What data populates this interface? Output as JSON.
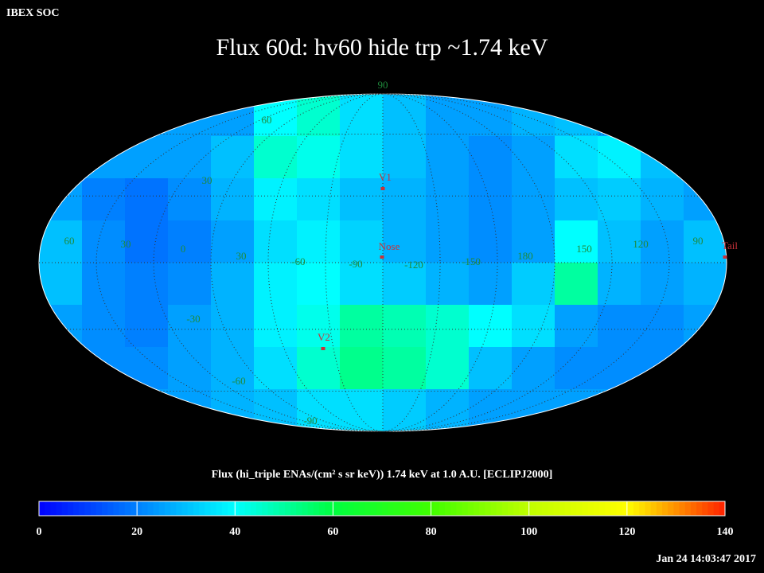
{
  "header": {
    "source": "IBEX SOC",
    "title": "Flux   60d: hv60 hide trp ~1.74 keV"
  },
  "map": {
    "latitude_labels": [
      "90",
      "60",
      "30",
      "-30",
      "-60",
      "-90"
    ],
    "longitude_labels": [
      "60",
      "30",
      "0",
      "30",
      "-60",
      "-90",
      "-120",
      "-150",
      "180",
      "150",
      "120",
      "90"
    ],
    "markers": [
      "V1",
      "Nose",
      "V2",
      "Tail"
    ],
    "sky_values": [
      [
        25,
        25,
        25,
        25,
        25,
        40,
        45,
        35,
        30,
        25,
        25,
        28,
        30,
        25,
        25,
        25
      ],
      [
        22,
        25,
        25,
        25,
        30,
        45,
        42,
        35,
        30,
        25,
        22,
        25,
        35,
        38,
        30,
        25
      ],
      [
        25,
        20,
        18,
        22,
        28,
        38,
        35,
        30,
        28,
        25,
        22,
        25,
        30,
        32,
        28,
        25
      ],
      [
        30,
        22,
        18,
        20,
        25,
        35,
        38,
        33,
        28,
        25,
        22,
        25,
        40,
        30,
        25,
        30
      ],
      [
        30,
        22,
        20,
        22,
        28,
        38,
        40,
        35,
        32,
        28,
        25,
        32,
        50,
        28,
        25,
        28
      ],
      [
        25,
        22,
        20,
        25,
        28,
        38,
        42,
        50,
        48,
        45,
        40,
        35,
        25,
        22,
        22,
        25
      ],
      [
        22,
        22,
        22,
        25,
        28,
        35,
        45,
        52,
        50,
        45,
        30,
        25,
        22,
        22,
        22,
        22
      ],
      [
        25,
        25,
        25,
        25,
        28,
        30,
        35,
        35,
        32,
        28,
        25,
        25,
        25,
        25,
        25,
        25
      ]
    ]
  },
  "colorbar": {
    "label": "Flux (hi_triple ENAs/(cm² s sr keV))  1.74 keV at 1.0 A.U. [ECLIPJ2000]",
    "lim": [
      0,
      140
    ],
    "ticks": [
      0,
      20,
      40,
      60,
      80,
      100,
      120,
      140
    ],
    "colormap": [
      "#0000ff",
      "#0080ff",
      "#00ffff",
      "#00ff40",
      "#40ff00",
      "#c0ff00",
      "#ffff00",
      "#ff2000"
    ]
  },
  "footer": {
    "timestamp": "Jan 24 14:03:47 2017"
  }
}
